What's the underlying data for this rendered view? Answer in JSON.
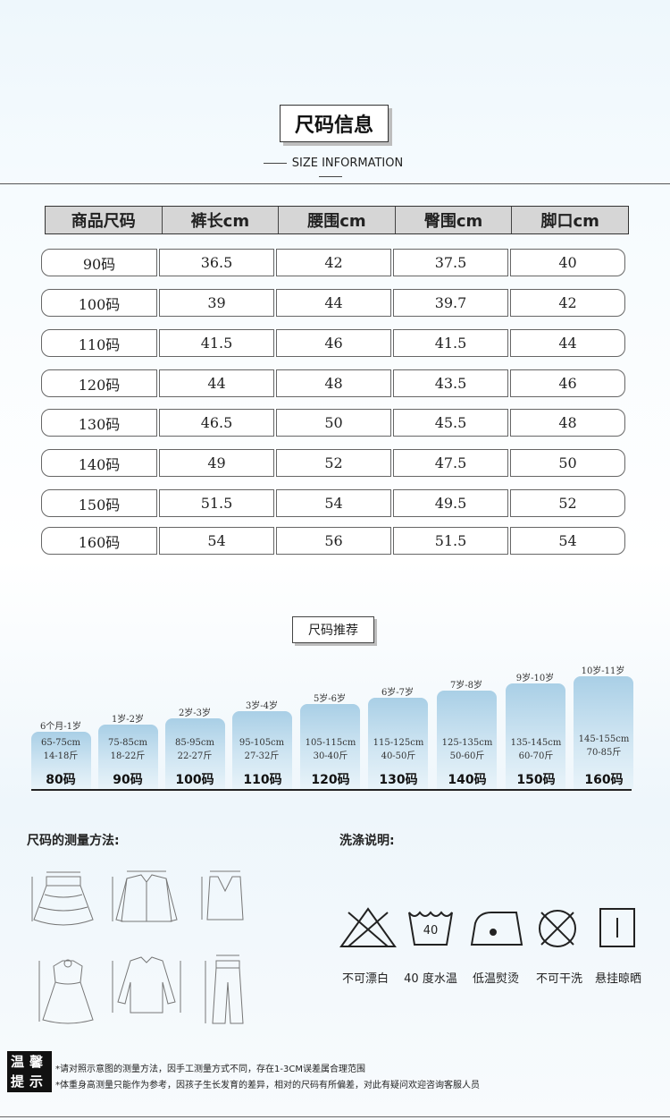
{
  "header": {
    "title": "尺码信息",
    "subtitle": "SIZE INFORMATION"
  },
  "size_table": {
    "headers": [
      "商品尺码",
      "裤长cm",
      "腰围cm",
      "臀围cm",
      "脚口cm"
    ],
    "rows": [
      [
        "90码",
        "36.5",
        "42",
        "37.5",
        "40"
      ],
      [
        "100码",
        "39",
        "44",
        "39.7",
        "42"
      ],
      [
        "110码",
        "41.5",
        "46",
        "41.5",
        "44"
      ],
      [
        "120码",
        "44",
        "48",
        "43.5",
        "46"
      ],
      [
        "130码",
        "46.5",
        "50",
        "45.5",
        "48"
      ],
      [
        "140码",
        "49",
        "52",
        "47.5",
        "50"
      ],
      [
        "150码",
        "51.5",
        "54",
        "49.5",
        "52"
      ],
      [
        "160码",
        "54",
        "56",
        "51.5",
        "54"
      ]
    ]
  },
  "recommend": {
    "title": "尺码推荐",
    "items": [
      {
        "age": "6个月-1岁",
        "height": "65-75cm",
        "weight": "14-18斤",
        "code": "80码"
      },
      {
        "age": "1岁-2岁",
        "height": "75-85cm",
        "weight": "18-22斤",
        "code": "90码"
      },
      {
        "age": "2岁-3岁",
        "height": "85-95cm",
        "weight": "22-27斤",
        "code": "100码"
      },
      {
        "age": "3岁-4岁",
        "height": "95-105cm",
        "weight": "27-32斤",
        "code": "110码"
      },
      {
        "age": "5岁-6岁",
        "height": "105-115cm",
        "weight": "30-40斤",
        "code": "120码"
      },
      {
        "age": "6岁-7岁",
        "height": "115-125cm",
        "weight": "40-50斤",
        "code": "130码"
      },
      {
        "age": "7岁-8岁",
        "height": "125-135cm",
        "weight": "50-60斤",
        "code": "140码"
      },
      {
        "age": "9岁-10岁",
        "height": "135-145cm",
        "weight": "60-70斤",
        "code": "150码"
      },
      {
        "age": "10岁-11岁",
        "height": "145-155cm",
        "weight": "70-85斤",
        "code": "160码"
      }
    ]
  },
  "measure": {
    "title": "尺码的测量方法:"
  },
  "care": {
    "title": "洗涤说明:",
    "items": [
      {
        "icon": "no-bleach-icon",
        "label": "不可漂白"
      },
      {
        "icon": "wash-40-icon",
        "label": "40 度水温",
        "mark": "40"
      },
      {
        "icon": "low-iron-icon",
        "label": "低温熨烫"
      },
      {
        "icon": "no-dry-clean-icon",
        "label": "不可干洗"
      },
      {
        "icon": "hang-dry-icon",
        "label": "悬挂晾晒"
      }
    ]
  },
  "tips": {
    "badge_top": "温馨",
    "badge_bottom": "提示",
    "lines": [
      "*请对照示意图的测量方法，因手工测量方式不同，存在1-3CM误差属合理范围",
      "*体重身高测量只能作为参考，因孩子生长发育的差异，相对的尺码有所偏差，对此有疑问欢迎咨询客服人员"
    ]
  }
}
